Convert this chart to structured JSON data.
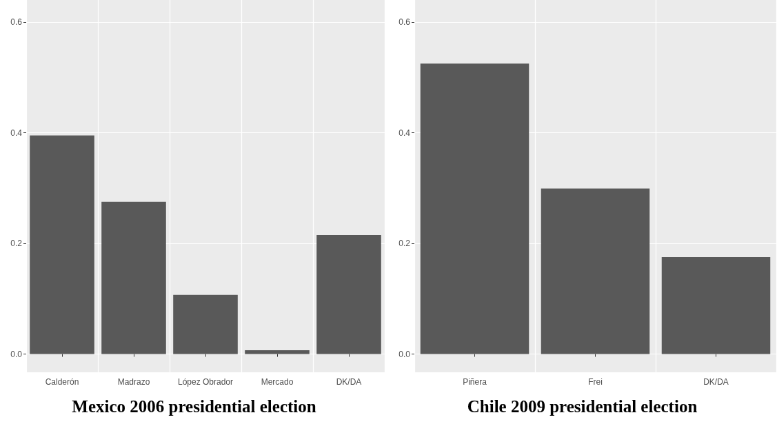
{
  "chart_data": [
    {
      "type": "bar",
      "title": "Mexico 2006 presidential election",
      "categories": [
        "Calderón",
        "Madrazo",
        "López Obrador",
        "Mercado",
        "DK/DA"
      ],
      "values": [
        0.395,
        0.275,
        0.107,
        0.007,
        0.215
      ],
      "color": "#595959",
      "ylim": [
        -0.033,
        0.64
      ],
      "yticks": [
        {
          "value": 0,
          "label": "0.0"
        },
        {
          "value": 0.2,
          "label": "0.2"
        },
        {
          "value": 0.4,
          "label": "0.4"
        },
        {
          "value": 0.6,
          "label": "0.6"
        }
      ],
      "grid": true
    },
    {
      "type": "bar",
      "title": "Chile 2009 presidential election",
      "categories": [
        "Piñera",
        "Frei",
        "DK/DA"
      ],
      "values": [
        0.525,
        0.299,
        0.175
      ],
      "color": "#595959",
      "ylim": [
        -0.033,
        0.64
      ],
      "yticks": [
        {
          "value": 0,
          "label": "0.0"
        },
        {
          "value": 0.2,
          "label": "0.2"
        },
        {
          "value": 0.4,
          "label": "0.4"
        },
        {
          "value": 0.6,
          "label": "0.6"
        }
      ],
      "grid": true
    }
  ]
}
